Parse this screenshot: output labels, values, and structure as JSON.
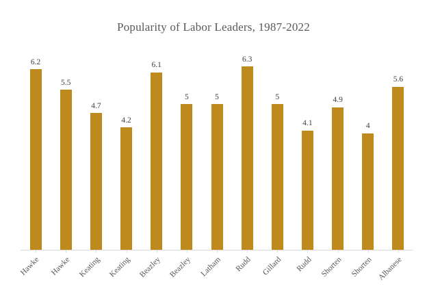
{
  "chart_data": {
    "type": "bar",
    "title": "Popularity of Labor Leaders, 1987-2022",
    "categories": [
      "Hawke",
      "Hawke",
      "Keating",
      "Keating",
      "Beazley",
      "Beazley",
      "Latham",
      "Rudd",
      "Gillard",
      "Rudd",
      "Shorten",
      "Shorten",
      "Albanese"
    ],
    "values": [
      6.2,
      5.5,
      4.7,
      4.2,
      6.1,
      5,
      5,
      6.3,
      5,
      4.1,
      4.9,
      4,
      5.6
    ],
    "data_labels": [
      "6.2",
      "5.5",
      "4.7",
      "4.2",
      "6.1",
      "5",
      "5",
      "6.3",
      "5",
      "4.1",
      "4.9",
      "4",
      "5.6"
    ],
    "xlabel": "",
    "ylabel": "",
    "ylim": [
      0,
      6.3
    ],
    "grid": false,
    "legend": "none",
    "x_tick_rotation": 45,
    "bar_color": "#be8a1d",
    "title_color": "#595959",
    "value_label_color": "#404040",
    "axis_label_color": "#595959",
    "baseline_color": "#d9d9d9"
  }
}
